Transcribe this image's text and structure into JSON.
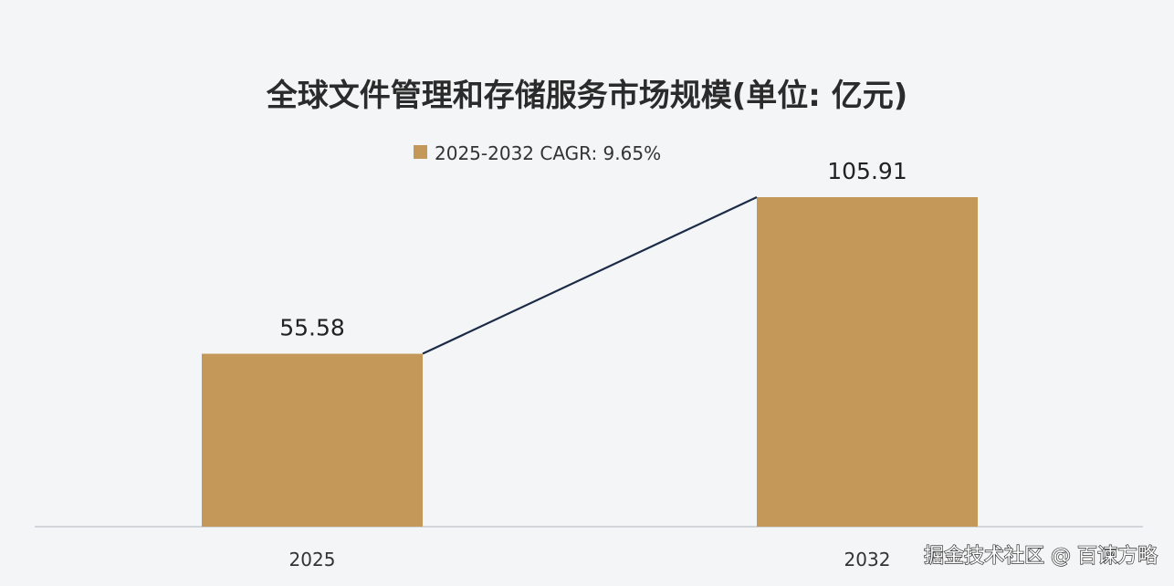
{
  "chart_data": {
    "type": "bar",
    "title": "全球文件管理和存储服务市场规模(单位: 亿元)",
    "categories": [
      "2025",
      "2032"
    ],
    "series": [
      {
        "name": "2025-2032 CAGR: 9.65%",
        "values": [
          55.58,
          105.91
        ]
      }
    ],
    "data_labels": [
      "55.58",
      "105.91"
    ],
    "ylim": [
      0,
      105.91
    ],
    "trend_line": true,
    "legend_position": "top-center",
    "grid": false,
    "colors": {
      "bar": "#c39858",
      "trend_line": "#1b2a47",
      "axis": "#c8ccd0",
      "background": "#f3f5f7"
    }
  },
  "watermark": "掘金技术社区 @ 百谏方略"
}
